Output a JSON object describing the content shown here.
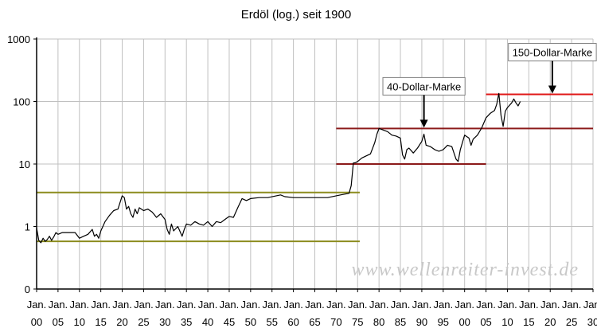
{
  "chart_data": {
    "type": "line",
    "title": "Erdöl (log.) seit 1900",
    "ylabel": "",
    "xlabel": "",
    "y_scale": "log",
    "ylim": [
      0.1,
      1000
    ],
    "xlim": [
      1900,
      2030
    ],
    "y_tick_labels": [
      "0",
      "1",
      "10",
      "100",
      "1000"
    ],
    "y_tick_values": [
      0.1,
      1,
      10,
      100,
      1000
    ],
    "x_ticks": [
      {
        "year": 1900,
        "top": "Jan.",
        "bottom": "00"
      },
      {
        "year": 1905,
        "top": "Jan.",
        "bottom": "05"
      },
      {
        "year": 1910,
        "top": "Jan.",
        "bottom": "10"
      },
      {
        "year": 1915,
        "top": "Jan.",
        "bottom": "15"
      },
      {
        "year": 1920,
        "top": "Jan.",
        "bottom": "20"
      },
      {
        "year": 1925,
        "top": "Jan.",
        "bottom": "25"
      },
      {
        "year": 1930,
        "top": "Jan.",
        "bottom": "30"
      },
      {
        "year": 1935,
        "top": "Jan.",
        "bottom": "35"
      },
      {
        "year": 1940,
        "top": "Jan.",
        "bottom": "40"
      },
      {
        "year": 1945,
        "top": "Jan.",
        "bottom": "45"
      },
      {
        "year": 1950,
        "top": "Jan.",
        "bottom": "50"
      },
      {
        "year": 1955,
        "top": "Jan.",
        "bottom": "55"
      },
      {
        "year": 1960,
        "top": "Jan.",
        "bottom": "60"
      },
      {
        "year": 1965,
        "top": "Jan.",
        "bottom": "65"
      },
      {
        "year": 1970,
        "top": "Jan.",
        "bottom": "70"
      },
      {
        "year": 1975,
        "top": "Jan.",
        "bottom": "75"
      },
      {
        "year": 1980,
        "top": "Jan.",
        "bottom": "80"
      },
      {
        "year": 1985,
        "top": "Jan.",
        "bottom": "85"
      },
      {
        "year": 1990,
        "top": "Jan.",
        "bottom": "90"
      },
      {
        "year": 1995,
        "top": "Jan.",
        "bottom": "95"
      },
      {
        "year": 2000,
        "top": "Jan.",
        "bottom": "00"
      },
      {
        "year": 2005,
        "top": "Jan.",
        "bottom": "05"
      },
      {
        "year": 2010,
        "top": "Jan.",
        "bottom": "10"
      },
      {
        "year": 2015,
        "top": "Jan.",
        "bottom": "15"
      },
      {
        "year": 2020,
        "top": "Jan.",
        "bottom": "20"
      },
      {
        "year": 2025,
        "top": "Jan.",
        "bottom": "25"
      },
      {
        "year": 2030,
        "top": "Jan.",
        "bottom": "30"
      }
    ],
    "grid": true,
    "series": [
      {
        "color": "#000000",
        "x": [
          1900.0,
          1900.5,
          1901.0,
          1901.5,
          1902.0,
          1902.5,
          1903.0,
          1903.5,
          1904.0,
          1904.5,
          1905.0,
          1906.0,
          1907.0,
          1908.0,
          1909.0,
          1910.0,
          1911.0,
          1912.0,
          1913.0,
          1913.5,
          1914.0,
          1914.5,
          1915.0,
          1916.0,
          1917.0,
          1918.0,
          1919.0,
          1920.0,
          1920.5,
          1921.0,
          1921.5,
          1922.0,
          1922.5,
          1923.0,
          1923.5,
          1924.0,
          1925.0,
          1926.0,
          1927.0,
          1928.0,
          1929.0,
          1930.0,
          1930.5,
          1931.0,
          1931.5,
          1932.0,
          1933.0,
          1934.0,
          1934.5,
          1935.0,
          1936.0,
          1937.0,
          1938.0,
          1939.0,
          1940.0,
          1941.0,
          1942.0,
          1943.0,
          1944.0,
          1945.0,
          1946.0,
          1947.0,
          1948.0,
          1949.0,
          1950.0,
          1952.0,
          1954.0,
          1956.0,
          1957.0,
          1958.0,
          1960.0,
          1962.0,
          1964.0,
          1966.0,
          1968.0,
          1970.0,
          1971.0,
          1972.0,
          1973.0,
          1973.5,
          1974.0,
          1974.5,
          1975.0,
          1976.0,
          1977.0,
          1978.0,
          1979.0,
          1979.5,
          1980.0,
          1980.5,
          1981.0,
          1982.0,
          1983.0,
          1984.0,
          1985.0,
          1985.5,
          1986.0,
          1986.5,
          1987.0,
          1988.0,
          1989.0,
          1990.0,
          1990.5,
          1991.0,
          1992.0,
          1993.0,
          1994.0,
          1995.0,
          1996.0,
          1997.0,
          1998.0,
          1998.5,
          1999.0,
          2000.0,
          2001.0,
          2001.5,
          2002.0,
          2003.0,
          2004.0,
          2005.0,
          2006.0,
          2007.0,
          2007.5,
          2008.0,
          2008.5,
          2009.0,
          2009.5,
          2010.0,
          2011.0,
          2011.5,
          2012.0,
          2012.5,
          2013.0
        ],
        "values": [
          0.95,
          0.6,
          0.55,
          0.65,
          0.58,
          0.62,
          0.7,
          0.6,
          0.68,
          0.8,
          0.75,
          0.8,
          0.8,
          0.8,
          0.8,
          0.65,
          0.7,
          0.75,
          0.9,
          0.7,
          0.75,
          0.65,
          0.85,
          1.2,
          1.5,
          1.8,
          1.9,
          3.1,
          2.9,
          1.9,
          2.1,
          1.6,
          1.4,
          1.9,
          1.6,
          2.0,
          1.8,
          1.9,
          1.7,
          1.4,
          1.6,
          1.3,
          0.9,
          0.75,
          1.1,
          0.85,
          1.0,
          0.7,
          0.9,
          1.1,
          1.05,
          1.2,
          1.1,
          1.05,
          1.2,
          1.0,
          1.2,
          1.15,
          1.3,
          1.45,
          1.4,
          2.0,
          2.8,
          2.6,
          2.8,
          2.9,
          2.9,
          3.1,
          3.2,
          3.0,
          2.9,
          2.9,
          2.9,
          2.9,
          2.9,
          3.1,
          3.2,
          3.3,
          3.4,
          4.5,
          10.4,
          10.5,
          11.0,
          12.5,
          13.5,
          14.5,
          22.0,
          30.0,
          37.0,
          36.0,
          35.0,
          33.0,
          29.0,
          28.0,
          26.0,
          14.0,
          12.0,
          17.0,
          18.0,
          15.0,
          18.0,
          23.0,
          30.0,
          20.0,
          19.0,
          17.0,
          16.0,
          17.0,
          20.0,
          19.0,
          12.0,
          11.0,
          17.0,
          29.0,
          26.0,
          20.0,
          25.0,
          29.0,
          38.0,
          55.0,
          65.0,
          72.0,
          90.0,
          135.0,
          60.0,
          40.0,
          70.0,
          80.0,
          95.0,
          110.0,
          95.0,
          85.0,
          100.0
        ]
      }
    ],
    "reference_lines": [
      {
        "y": 3.5,
        "x_start": 1900,
        "x_end": 1975.5,
        "color": "#8c8c1e"
      },
      {
        "y": 0.58,
        "x_start": 1900,
        "x_end": 1975.5,
        "color": "#8c8c1e"
      },
      {
        "y": 10,
        "x_start": 1970,
        "x_end": 2005,
        "color": "#8b1a1a"
      },
      {
        "y": 37,
        "x_start": 1970,
        "x_end": 2030,
        "color": "#8b1a1a"
      },
      {
        "y": 130,
        "x_start": 2005,
        "x_end": 2030,
        "color": "#e01818"
      }
    ],
    "annotations": [
      {
        "text": "40-Dollar-Marke",
        "x": 1990.5,
        "y_arrow": 37
      },
      {
        "text": "150-Dollar-Marke",
        "x": 2020.5,
        "y_arrow": 130
      }
    ],
    "watermark": "www.wellenreiter-invest.de"
  }
}
